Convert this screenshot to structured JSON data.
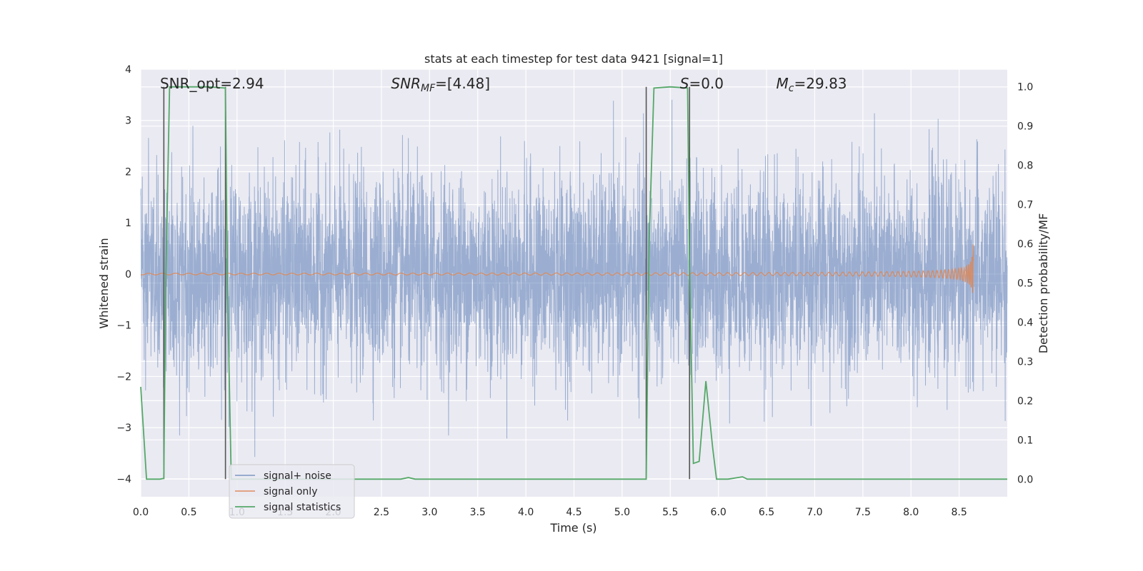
{
  "chart_data": {
    "type": "line",
    "title": "stats at each timestep for test data 9421 [signal=1]",
    "xlabel": "Time (s)",
    "ylabel": "Whitened strain",
    "ylabel_right": "Detection probability/MF",
    "xlim": [
      0,
      9.0
    ],
    "ylim_left": [
      -4.35,
      4.0
    ],
    "ylim_right": [
      -0.045,
      1.045
    ],
    "x_ticks": [
      "0.0",
      "0.5",
      "1.0",
      "1.5",
      "2.0",
      "2.5",
      "3.0",
      "3.5",
      "4.0",
      "4.5",
      "5.0",
      "5.5",
      "6.0",
      "6.5",
      "7.0",
      "7.5",
      "8.0",
      "8.5"
    ],
    "y_left_ticks": [
      "−4",
      "−3",
      "−2",
      "−1",
      "0",
      "1",
      "2",
      "3",
      "4"
    ],
    "y_right_ticks": [
      "0.0",
      "0.1",
      "0.2",
      "0.3",
      "0.4",
      "0.5",
      "0.6",
      "0.7",
      "0.8",
      "0.9",
      "1.0"
    ],
    "grid": true,
    "legend_position": "lower-left",
    "colors": {
      "background": "#eaeaf2",
      "grid": "#ffffff",
      "noise": "#4c72b0",
      "signal": "#dd8452",
      "stats": "#55a868",
      "marker": "#555555"
    },
    "annotations": [
      {
        "text": "SNR_opt=2.94",
        "italic": false,
        "x": 0.2
      },
      {
        "text": "SNR",
        "sub": "MF",
        "rest": "=[4.48]",
        "italic": true,
        "x": 2.6
      },
      {
        "text": "S",
        "rest": "=0.0",
        "italic": true,
        "x": 5.6
      },
      {
        "text": "M",
        "sub": "c",
        "rest": "=29.83",
        "italic": true,
        "x": 6.6
      }
    ],
    "series": [
      {
        "name": "signal+ noise",
        "description": "whitened noisy strain, approx amplitude ±2",
        "x_range": [
          0,
          9.0
        ],
        "typical_amplitude": 2.0
      },
      {
        "name": "signal only",
        "description": "chirp waveform growing toward merger near 8.65 s",
        "merger_time": 8.65,
        "peak_amplitude": 0.7
      },
      {
        "name": "signal statistics",
        "x": [
          0.0,
          0.06,
          0.1,
          0.2,
          0.24,
          0.26,
          0.3,
          0.5,
          0.7,
          0.88,
          0.9,
          0.94,
          1.0,
          1.5,
          2.0,
          2.5,
          2.7,
          2.78,
          2.85,
          3.0,
          3.5,
          4.0,
          4.5,
          5.0,
          5.25,
          5.28,
          5.33,
          5.5,
          5.68,
          5.7,
          5.74,
          5.8,
          5.87,
          5.94,
          5.98,
          6.0,
          6.1,
          6.25,
          6.3,
          7.0,
          7.5,
          8.0,
          8.5,
          9.0
        ],
        "y": [
          0.235,
          0.0,
          0.0,
          0.0,
          0.002,
          0.5,
          1.0,
          1.0,
          1.0,
          0.997,
          0.5,
          0.0,
          0.0,
          0.0,
          0.0,
          0.0,
          0.0,
          0.004,
          0.0,
          0.0,
          0.0,
          0.0,
          0.0,
          0.0,
          0.0,
          0.6,
          0.997,
          1.0,
          0.997,
          0.55,
          0.04,
          0.045,
          0.25,
          0.08,
          0.0,
          0.0,
          0.0,
          0.006,
          0.0,
          0.0,
          0.0,
          0.0,
          0.0,
          0.0
        ]
      }
    ],
    "vertical_markers": [
      {
        "x": 0.24,
        "y_top": 1.0,
        "y_bottom": 0.0
      },
      {
        "x": 0.88,
        "y_top": 1.0,
        "y_bottom": 0.0
      },
      {
        "x": 5.25,
        "y_top": 1.0,
        "y_bottom": 0.0
      },
      {
        "x": 5.7,
        "y_top": 1.0,
        "y_bottom": 0.0
      }
    ],
    "legend": [
      "signal+ noise",
      "signal only",
      "signal statistics"
    ]
  }
}
